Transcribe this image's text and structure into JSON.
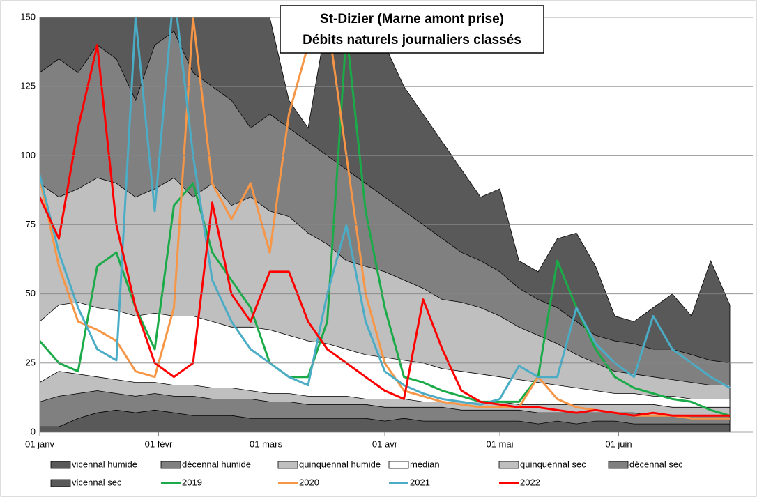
{
  "chart_data": {
    "type": "line",
    "title": [
      "St-Dizier (Marne amont prise)",
      "Débits naturels journaliers classés"
    ],
    "x": [
      0,
      5,
      10,
      15,
      20,
      25,
      30,
      35,
      40,
      45,
      50,
      55,
      60,
      65,
      70,
      75,
      80,
      85,
      90,
      95,
      100,
      105,
      110,
      115,
      120,
      125,
      130,
      135,
      140,
      145,
      150,
      155,
      160,
      165,
      170,
      175,
      180
    ],
    "xlim": [
      0,
      186
    ],
    "xticks": [
      {
        "value": 0,
        "label": "01 janv"
      },
      {
        "value": 31,
        "label": "01 févr"
      },
      {
        "value": 59,
        "label": "01 mars"
      },
      {
        "value": 90,
        "label": "01 avr"
      },
      {
        "value": 120,
        "label": "01 mai"
      },
      {
        "value": 151,
        "label": "01 juin"
      }
    ],
    "ylim": [
      0,
      150
    ],
    "yticks": [
      0,
      25,
      50,
      75,
      100,
      125,
      150
    ],
    "grid": true,
    "legend": "bottom",
    "series": [
      {
        "name": "vicennal humide",
        "type": "area",
        "color": "#595959",
        "values": [
          160,
          160,
          160,
          160,
          160,
          160,
          160,
          160,
          160,
          160,
          160,
          155,
          150,
          120,
          110,
          150,
          150,
          140,
          140,
          125,
          115,
          105,
          95,
          85,
          88,
          62,
          58,
          70,
          72,
          60,
          42,
          40,
          45,
          50,
          42,
          62,
          46
        ]
      },
      {
        "name": "décennal humide",
        "type": "area",
        "color": "#808080",
        "values": [
          130,
          135,
          130,
          140,
          135,
          120,
          140,
          145,
          130,
          125,
          120,
          110,
          115,
          110,
          105,
          100,
          95,
          90,
          85,
          80,
          75,
          70,
          65,
          62,
          58,
          52,
          48,
          45,
          40,
          35,
          33,
          32,
          30,
          30,
          28,
          26,
          25
        ]
      },
      {
        "name": "quinquennal humide",
        "type": "area",
        "color": "#bfbfbf",
        "values": [
          90,
          85,
          88,
          92,
          90,
          85,
          88,
          92,
          85,
          90,
          82,
          85,
          80,
          78,
          72,
          68,
          62,
          60,
          58,
          55,
          52,
          48,
          47,
          45,
          42,
          38,
          35,
          32,
          28,
          25,
          22,
          21,
          20,
          19,
          18,
          17,
          17
        ]
      },
      {
        "name": "médian",
        "type": "area",
        "color": "#ffffff",
        "values": [
          40,
          46,
          47,
          45,
          44,
          42,
          43,
          42,
          42,
          40,
          38,
          38,
          37,
          35,
          33,
          32,
          30,
          28,
          27,
          26,
          25,
          23,
          22,
          21,
          20,
          19,
          18,
          17,
          16,
          15,
          14,
          14,
          13,
          13,
          12,
          12,
          12
        ]
      },
      {
        "name": "quinquennal sec",
        "type": "area",
        "color": "#bfbfbf",
        "values": [
          18,
          22,
          21,
          20,
          19,
          18,
          18,
          17,
          17,
          16,
          16,
          15,
          14,
          14,
          13,
          13,
          13,
          12,
          12,
          12,
          11,
          11,
          11,
          11,
          11,
          10,
          10,
          10,
          10,
          10,
          10,
          10,
          10,
          9,
          9,
          9,
          9
        ]
      },
      {
        "name": "décennal sec",
        "type": "area",
        "color": "#808080",
        "values": [
          11,
          13,
          14,
          15,
          14,
          13,
          14,
          13,
          13,
          12,
          12,
          12,
          11,
          11,
          10,
          10,
          10,
          10,
          9,
          9,
          9,
          9,
          8,
          8,
          8,
          8,
          7,
          7,
          7,
          7,
          7,
          7,
          6,
          6,
          6,
          6,
          6
        ]
      },
      {
        "name": "vicennal sec",
        "type": "area",
        "color": "#595959",
        "values": [
          2,
          2,
          5,
          7,
          8,
          7,
          8,
          7,
          6,
          6,
          6,
          5,
          5,
          5,
          5,
          5,
          5,
          5,
          4,
          5,
          4,
          4,
          4,
          4,
          4,
          4,
          3,
          4,
          3,
          4,
          4,
          3,
          3,
          3,
          3,
          3,
          3
        ]
      },
      {
        "name": "2019",
        "type": "line",
        "color": "#1aaa48",
        "values": [
          33,
          25,
          22,
          60,
          65,
          45,
          30,
          82,
          90,
          65,
          55,
          45,
          25,
          20,
          20,
          40,
          145,
          80,
          45,
          20,
          18,
          15,
          13,
          11,
          11,
          11,
          20,
          62,
          45,
          30,
          20,
          16,
          14,
          12,
          11,
          8,
          6
        ]
      },
      {
        "name": "2020",
        "type": "line",
        "color": "#f79646",
        "values": [
          92,
          60,
          40,
          37,
          33,
          22,
          20,
          45,
          150,
          90,
          77,
          90,
          65,
          115,
          140,
          150,
          100,
          50,
          25,
          15,
          13,
          11,
          10,
          9,
          9,
          9,
          20,
          12,
          9,
          8,
          7,
          6,
          6,
          6,
          5,
          5,
          5
        ]
      },
      {
        "name": "2021",
        "type": "line",
        "color": "#4bacc6",
        "values": [
          93,
          65,
          45,
          30,
          26,
          150,
          80,
          160,
          100,
          55,
          40,
          30,
          25,
          20,
          17,
          50,
          75,
          40,
          22,
          17,
          14,
          12,
          11,
          10,
          12,
          24,
          20,
          20,
          45,
          32,
          25,
          20,
          42,
          30,
          25,
          20,
          16
        ]
      },
      {
        "name": "2022",
        "type": "line",
        "color": "#ff0000",
        "values": [
          85,
          70,
          110,
          140,
          75,
          45,
          25,
          20,
          25,
          83,
          50,
          40,
          58,
          58,
          40,
          30,
          25,
          20,
          15,
          12,
          48,
          30,
          15,
          11,
          10,
          9,
          9,
          8,
          7,
          8,
          7,
          6,
          7,
          6,
          6,
          6,
          6
        ]
      }
    ]
  }
}
